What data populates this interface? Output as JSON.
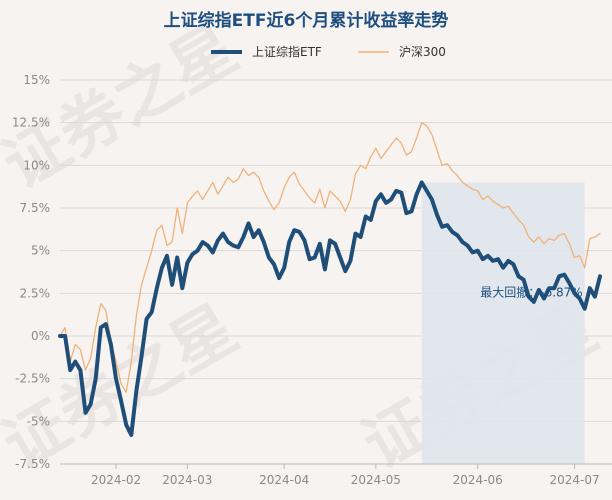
{
  "chart_data": {
    "type": "line",
    "title": "上证综指ETF近6个月累计收益率走势",
    "legend": [
      "上证综指ETF",
      "沪深300"
    ],
    "yticks": [
      "15%",
      "12.5%",
      "10%",
      "7.5%",
      "5%",
      "2.5%",
      "0%",
      "-2.5%",
      "-5%",
      "-7.5%"
    ],
    "ylim": [
      -7.5,
      15
    ],
    "xticks": [
      {
        "label": "2024-02",
        "index": 11
      },
      {
        "label": "2024-03",
        "index": 25
      },
      {
        "label": "2024-04",
        "index": 44
      },
      {
        "label": "2024-05",
        "index": 62
      },
      {
        "label": "2024-06",
        "index": 82
      },
      {
        "label": "2024-07",
        "index": 101
      }
    ],
    "n_points": 107,
    "series": [
      {
        "name": "上证综指ETF",
        "color": "#1f4e79",
        "values": [
          0.0,
          0.0,
          -2.0,
          -1.5,
          -2.0,
          -4.5,
          -4.0,
          -2.5,
          0.5,
          0.7,
          -0.5,
          -2.5,
          -3.8,
          -5.2,
          -5.8,
          -3.2,
          -1.2,
          1.0,
          1.4,
          2.8,
          4.0,
          4.7,
          3.0,
          4.6,
          2.8,
          4.3,
          4.8,
          5.0,
          5.5,
          5.3,
          4.9,
          5.6,
          6.0,
          5.5,
          5.3,
          5.2,
          5.8,
          6.6,
          5.8,
          6.2,
          5.5,
          4.6,
          4.2,
          3.4,
          4.0,
          5.5,
          6.2,
          6.1,
          5.6,
          4.5,
          4.6,
          5.4,
          3.9,
          5.6,
          5.4,
          4.6,
          3.8,
          4.4,
          6.0,
          5.8,
          7.0,
          6.8,
          7.9,
          8.3,
          7.8,
          8.0,
          8.5,
          8.4,
          7.2,
          7.3,
          8.3,
          9.0,
          8.5,
          8.0,
          7.1,
          6.4,
          6.5,
          6.1,
          5.9,
          5.5,
          5.3,
          4.9,
          5.0,
          4.5,
          4.7,
          4.4,
          4.5,
          4.0,
          4.4,
          4.2,
          3.5,
          3.3,
          2.3,
          2.0,
          2.7,
          2.2,
          2.8,
          2.8,
          3.5,
          3.6,
          3.1,
          2.5,
          2.2,
          1.6,
          2.8,
          2.3,
          3.5
        ]
      },
      {
        "name": "沪深300",
        "color": "#f0b27a",
        "values": [
          0.0,
          0.5,
          -1.5,
          -0.5,
          -0.8,
          -2.0,
          -1.3,
          0.5,
          1.9,
          1.5,
          -0.3,
          -1.5,
          -2.8,
          -3.3,
          -1.5,
          1.2,
          3.0,
          4.0,
          5.0,
          6.2,
          6.5,
          5.3,
          5.5,
          7.5,
          6.0,
          7.8,
          8.2,
          8.5,
          8.0,
          8.5,
          9.0,
          8.3,
          8.8,
          9.3,
          9.0,
          9.2,
          9.8,
          9.4,
          9.6,
          9.3,
          8.5,
          7.9,
          7.4,
          7.8,
          8.7,
          9.3,
          9.6,
          8.9,
          8.5,
          8.1,
          7.8,
          8.6,
          7.5,
          8.5,
          8.2,
          7.9,
          7.3,
          8.0,
          9.5,
          10.0,
          9.8,
          10.5,
          11.0,
          10.4,
          10.8,
          11.2,
          11.6,
          11.3,
          10.6,
          10.8,
          11.6,
          12.5,
          12.3,
          11.8,
          10.9,
          10.0,
          10.1,
          9.7,
          9.4,
          9.0,
          8.8,
          8.6,
          8.5,
          8.0,
          8.2,
          7.9,
          7.7,
          7.5,
          7.6,
          7.2,
          6.8,
          6.5,
          5.8,
          5.5,
          5.8,
          5.4,
          5.7,
          5.6,
          5.9,
          6.0,
          5.4,
          4.6,
          4.7,
          4.0,
          5.7,
          5.8,
          6.0
        ]
      }
    ],
    "drawdown": {
      "start_index": 71,
      "end_index": 103,
      "label": "最大回撤：-6.87%",
      "shade_color": "#dfe5ec"
    }
  },
  "watermark": {
    "text": "证券之星"
  }
}
